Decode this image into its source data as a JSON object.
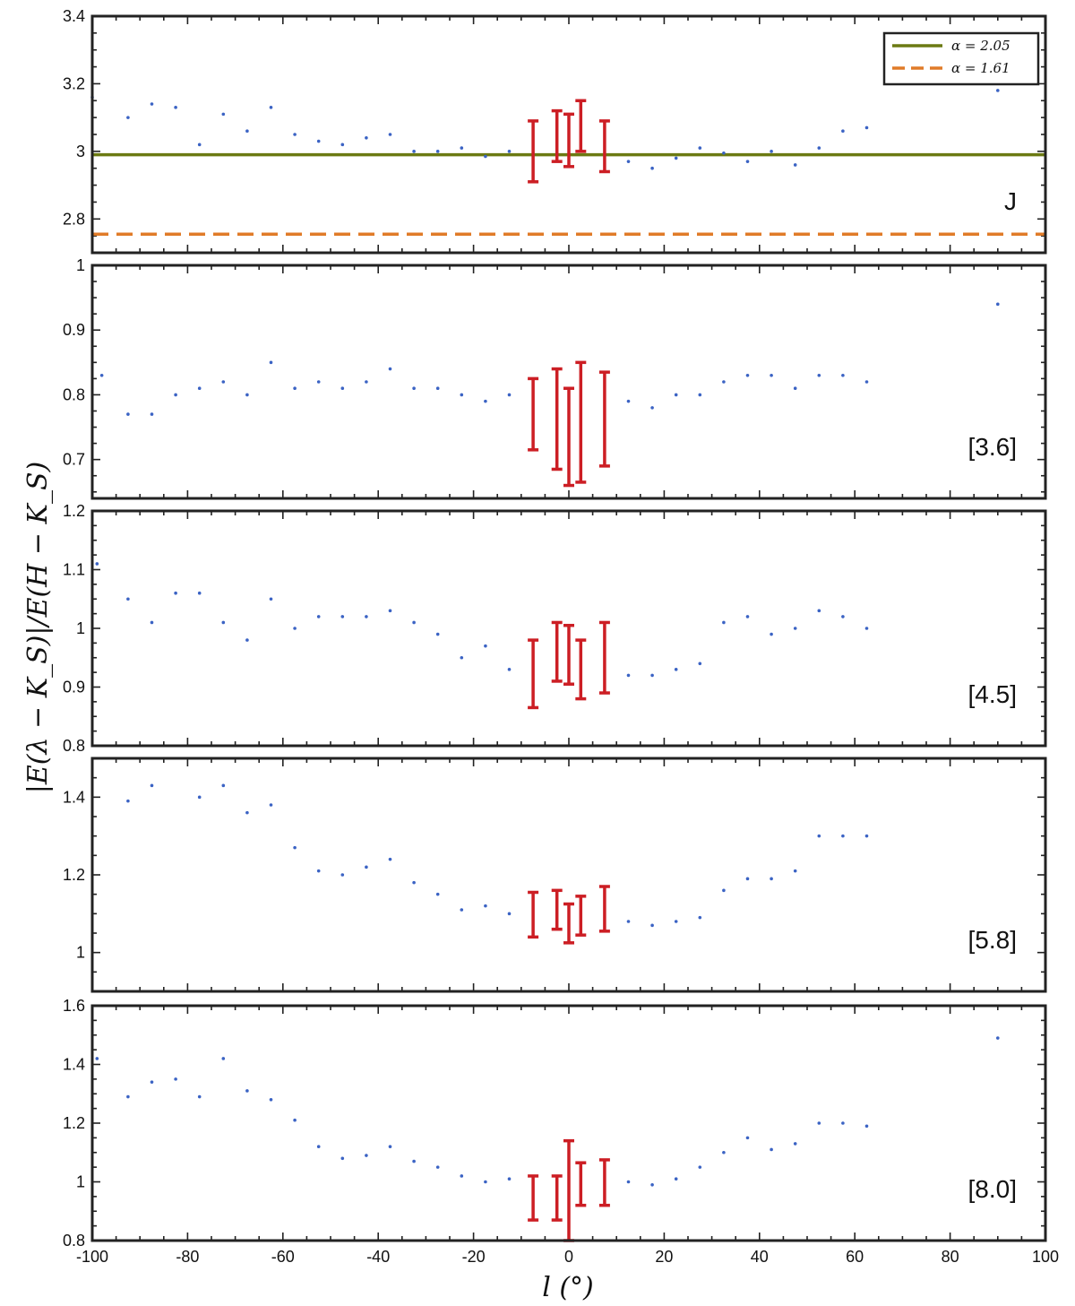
{
  "chart_data": {
    "type": "scatter",
    "x_label": "l (°)",
    "y_label": "|E(λ − K_S)|/E(H − K_S)",
    "x_range": [
      -100,
      100
    ],
    "x_ticks": [
      -100,
      -80,
      -60,
      -40,
      -20,
      0,
      20,
      40,
      60,
      80,
      100
    ],
    "colors": {
      "points": "#3b63c4",
      "error_bars": "#cc1e24",
      "alpha_205": "#6b7a12",
      "alpha_161": "#e07b28"
    },
    "legend": {
      "entries": [
        {
          "label": "α = 2.05",
          "color": "#6b7a12",
          "style": "solid"
        },
        {
          "label": "α = 1.61",
          "color": "#e07b28",
          "style": "dashed"
        }
      ],
      "position": "top-right of first panel"
    },
    "panels": [
      {
        "label": "J",
        "y_range": [
          2.7,
          3.4
        ],
        "y_ticks": [
          2.8,
          3,
          3.2,
          3.4
        ],
        "reference_lines": [
          {
            "series": "α = 2.05",
            "y": 2.99
          },
          {
            "series": "α = 1.61",
            "y": 2.755
          }
        ],
        "points": [
          [
            -100,
            3.16
          ],
          [
            -92.5,
            3.1
          ],
          [
            -87.5,
            3.14
          ],
          [
            -82.5,
            3.13
          ],
          [
            -77.5,
            3.02
          ],
          [
            -72.5,
            3.11
          ],
          [
            -67.5,
            3.06
          ],
          [
            -62.5,
            3.13
          ],
          [
            -57.5,
            3.05
          ],
          [
            -52.5,
            3.03
          ],
          [
            -47.5,
            3.02
          ],
          [
            -42.5,
            3.04
          ],
          [
            -37.5,
            3.05
          ],
          [
            -32.5,
            3.0
          ],
          [
            -27.5,
            3.0
          ],
          [
            -22.5,
            3.01
          ],
          [
            -17.5,
            2.985
          ],
          [
            -12.5,
            3.0
          ],
          [
            12.5,
            2.97
          ],
          [
            17.5,
            2.95
          ],
          [
            22.5,
            2.98
          ],
          [
            27.5,
            3.01
          ],
          [
            32.5,
            2.995
          ],
          [
            37.5,
            2.97
          ],
          [
            42.5,
            3.0
          ],
          [
            47.5,
            2.96
          ],
          [
            52.5,
            3.01
          ],
          [
            57.5,
            3.06
          ],
          [
            62.5,
            3.07
          ],
          [
            90,
            3.18
          ]
        ],
        "error_bars": [
          [
            -7.5,
            2.91,
            3.09
          ],
          [
            -2.5,
            2.97,
            3.12
          ],
          [
            0,
            2.955,
            3.11
          ],
          [
            2.5,
            3.0,
            3.15
          ],
          [
            7.5,
            2.94,
            3.09
          ]
        ]
      },
      {
        "label": "[3.6]",
        "y_range": [
          0.64,
          1.0
        ],
        "y_ticks": [
          0.7,
          0.8,
          0.9,
          1
        ],
        "points": [
          [
            -98,
            0.83
          ],
          [
            -92.5,
            0.77
          ],
          [
            -87.5,
            0.77
          ],
          [
            -82.5,
            0.8
          ],
          [
            -77.5,
            0.81
          ],
          [
            -72.5,
            0.82
          ],
          [
            -67.5,
            0.8
          ],
          [
            -62.5,
            0.85
          ],
          [
            -57.5,
            0.81
          ],
          [
            -52.5,
            0.82
          ],
          [
            -47.5,
            0.81
          ],
          [
            -42.5,
            0.82
          ],
          [
            -37.5,
            0.84
          ],
          [
            -32.5,
            0.81
          ],
          [
            -27.5,
            0.81
          ],
          [
            -22.5,
            0.8
          ],
          [
            -17.5,
            0.79
          ],
          [
            -12.5,
            0.8
          ],
          [
            12.5,
            0.79
          ],
          [
            17.5,
            0.78
          ],
          [
            22.5,
            0.8
          ],
          [
            27.5,
            0.8
          ],
          [
            32.5,
            0.82
          ],
          [
            37.5,
            0.83
          ],
          [
            42.5,
            0.83
          ],
          [
            47.5,
            0.81
          ],
          [
            52.5,
            0.83
          ],
          [
            57.5,
            0.83
          ],
          [
            62.5,
            0.82
          ],
          [
            90,
            0.94
          ]
        ],
        "error_bars": [
          [
            -7.5,
            0.715,
            0.825
          ],
          [
            -2.5,
            0.685,
            0.84
          ],
          [
            0,
            0.66,
            0.81
          ],
          [
            2.5,
            0.665,
            0.85
          ],
          [
            7.5,
            0.69,
            0.835
          ]
        ]
      },
      {
        "label": "[4.5]",
        "y_range": [
          0.8,
          1.2
        ],
        "y_ticks": [
          0.8,
          0.9,
          1,
          1.1,
          1.2
        ],
        "points": [
          [
            -99,
            1.11
          ],
          [
            -92.5,
            1.05
          ],
          [
            -87.5,
            1.01
          ],
          [
            -82.5,
            1.06
          ],
          [
            -77.5,
            1.06
          ],
          [
            -72.5,
            1.01
          ],
          [
            -67.5,
            0.98
          ],
          [
            -62.5,
            1.05
          ],
          [
            -57.5,
            1.0
          ],
          [
            -52.5,
            1.02
          ],
          [
            -47.5,
            1.02
          ],
          [
            -42.5,
            1.02
          ],
          [
            -37.5,
            1.03
          ],
          [
            -32.5,
            1.01
          ],
          [
            -27.5,
            0.99
          ],
          [
            -22.5,
            0.95
          ],
          [
            -17.5,
            0.97
          ],
          [
            -12.5,
            0.93
          ],
          [
            12.5,
            0.92
          ],
          [
            17.5,
            0.92
          ],
          [
            22.5,
            0.93
          ],
          [
            27.5,
            0.94
          ],
          [
            32.5,
            1.01
          ],
          [
            37.5,
            1.02
          ],
          [
            42.5,
            0.99
          ],
          [
            47.5,
            1.0
          ],
          [
            52.5,
            1.03
          ],
          [
            57.5,
            1.02
          ],
          [
            62.5,
            1.0
          ]
        ],
        "error_bars": [
          [
            -7.5,
            0.865,
            0.98
          ],
          [
            -2.5,
            0.91,
            1.01
          ],
          [
            0,
            0.905,
            1.005
          ],
          [
            2.5,
            0.88,
            0.98
          ],
          [
            7.5,
            0.89,
            1.01
          ]
        ]
      },
      {
        "label": "[5.8]",
        "y_range": [
          0.9,
          1.5
        ],
        "y_ticks": [
          1,
          1.2,
          1.4
        ],
        "points": [
          [
            -92.5,
            1.39
          ],
          [
            -87.5,
            1.43
          ],
          [
            -77.5,
            1.4
          ],
          [
            -72.5,
            1.43
          ],
          [
            -67.5,
            1.36
          ],
          [
            -62.5,
            1.38
          ],
          [
            -57.5,
            1.27
          ],
          [
            -52.5,
            1.21
          ],
          [
            -47.5,
            1.2
          ],
          [
            -42.5,
            1.22
          ],
          [
            -37.5,
            1.24
          ],
          [
            -32.5,
            1.18
          ],
          [
            -27.5,
            1.15
          ],
          [
            -22.5,
            1.11
          ],
          [
            -17.5,
            1.12
          ],
          [
            -12.5,
            1.1
          ],
          [
            12.5,
            1.08
          ],
          [
            17.5,
            1.07
          ],
          [
            22.5,
            1.08
          ],
          [
            27.5,
            1.09
          ],
          [
            32.5,
            1.16
          ],
          [
            37.5,
            1.19
          ],
          [
            42.5,
            1.19
          ],
          [
            47.5,
            1.21
          ],
          [
            52.5,
            1.3
          ],
          [
            57.5,
            1.3
          ],
          [
            62.5,
            1.3
          ]
        ],
        "error_bars": [
          [
            -7.5,
            1.04,
            1.155
          ],
          [
            -2.5,
            1.06,
            1.16
          ],
          [
            0,
            1.025,
            1.125
          ],
          [
            2.5,
            1.045,
            1.145
          ],
          [
            7.5,
            1.055,
            1.17
          ]
        ]
      },
      {
        "label": "[8.0]",
        "y_range": [
          0.8,
          1.6
        ],
        "y_ticks": [
          0.8,
          1,
          1.2,
          1.4,
          1.6
        ],
        "points": [
          [
            -99,
            1.42
          ],
          [
            -92.5,
            1.29
          ],
          [
            -87.5,
            1.34
          ],
          [
            -82.5,
            1.35
          ],
          [
            -77.5,
            1.29
          ],
          [
            -72.5,
            1.42
          ],
          [
            -67.5,
            1.31
          ],
          [
            -62.5,
            1.28
          ],
          [
            -57.5,
            1.21
          ],
          [
            -52.5,
            1.12
          ],
          [
            -47.5,
            1.08
          ],
          [
            -42.5,
            1.09
          ],
          [
            -37.5,
            1.12
          ],
          [
            -32.5,
            1.07
          ],
          [
            -27.5,
            1.05
          ],
          [
            -22.5,
            1.02
          ],
          [
            -17.5,
            1.0
          ],
          [
            -12.5,
            1.01
          ],
          [
            12.5,
            1.0
          ],
          [
            17.5,
            0.99
          ],
          [
            22.5,
            1.01
          ],
          [
            27.5,
            1.05
          ],
          [
            32.5,
            1.1
          ],
          [
            37.5,
            1.15
          ],
          [
            42.5,
            1.11
          ],
          [
            47.5,
            1.13
          ],
          [
            52.5,
            1.2
          ],
          [
            57.5,
            1.2
          ],
          [
            62.5,
            1.19
          ],
          [
            90,
            1.49
          ]
        ],
        "error_bars": [
          [
            -7.5,
            0.87,
            1.02
          ],
          [
            -2.5,
            0.87,
            1.02
          ],
          [
            0,
            0.8,
            1.14
          ],
          [
            2.5,
            0.92,
            1.065
          ],
          [
            7.5,
            0.92,
            1.075
          ]
        ]
      }
    ]
  }
}
